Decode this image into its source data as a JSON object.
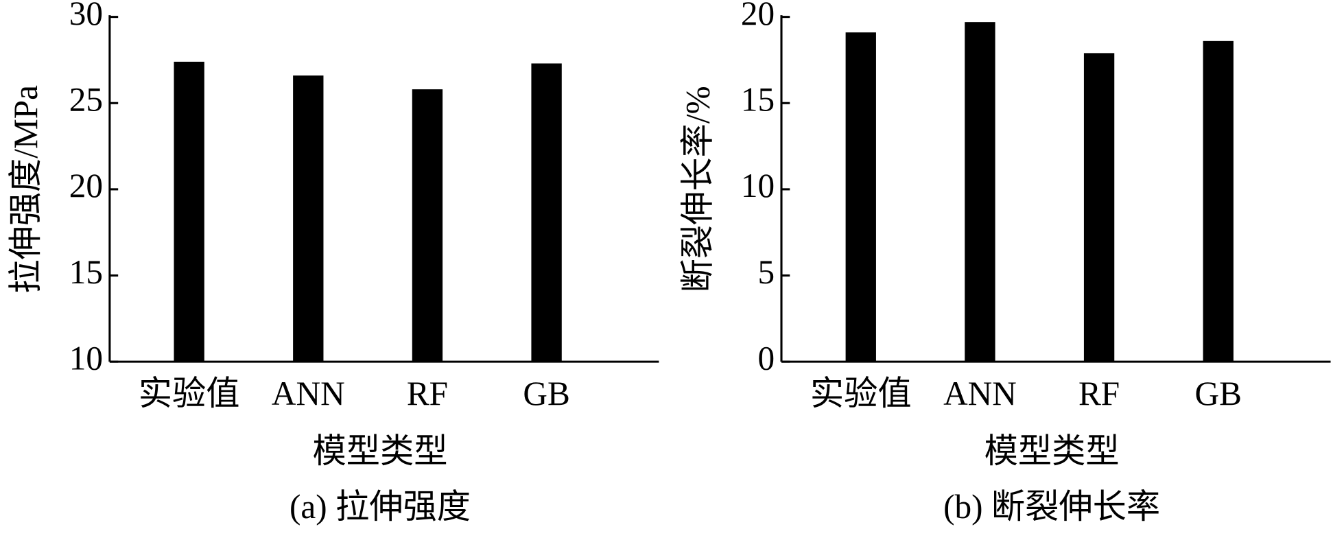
{
  "chart_data": [
    {
      "type": "bar",
      "caption": "(a) 拉伸强度",
      "y_label": "拉伸强度/MPa",
      "x_label": "模型类型",
      "categories": [
        "实验值",
        "ANN",
        "RF",
        "GB"
      ],
      "values": [
        27.4,
        26.6,
        25.8,
        27.3
      ],
      "color": "#000000",
      "ylim": [
        10,
        30
      ],
      "yticks": [
        10,
        15,
        20,
        25,
        30
      ]
    },
    {
      "type": "bar",
      "caption": "(b) 断裂伸长率",
      "y_label": "断裂伸长率/%",
      "x_label": "模型类型",
      "categories": [
        "实验值",
        "ANN",
        "RF",
        "GB"
      ],
      "values": [
        19.1,
        19.7,
        17.9,
        18.6
      ],
      "color": "#000000",
      "ylim": [
        0,
        20
      ],
      "yticks": [
        0,
        5,
        10,
        15,
        20
      ]
    }
  ]
}
